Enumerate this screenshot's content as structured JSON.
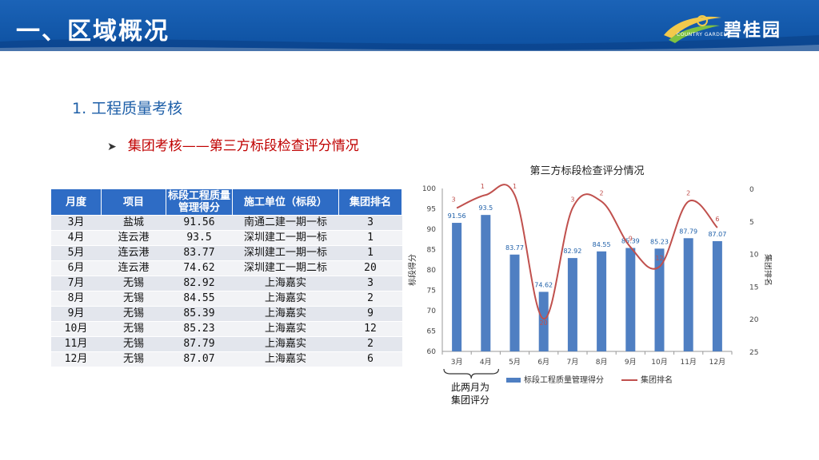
{
  "header": {
    "title": "一、区域概况",
    "logo_text": "碧桂园",
    "logo_small": "COUNTRY GARDEN"
  },
  "section_title": "1. 工程质量考核",
  "subsection_title": "集团考核——第三方标段检查评分情况",
  "colors": {
    "header_blue": "#1b63b7",
    "bar_blue": "#4f7fc2",
    "line_red": "#c0504d",
    "table_header": "#2e6cc5"
  },
  "table": {
    "headers": [
      "月度",
      "项目",
      "标段工程质量管理得分",
      "施工单位（标段）",
      "集团排名"
    ],
    "rows": [
      [
        "3月",
        "盐城",
        "91.56",
        "南通二建一期一标",
        "3"
      ],
      [
        "4月",
        "连云港",
        "93.5",
        "深圳建工一期一标",
        "1"
      ],
      [
        "5月",
        "连云港",
        "83.77",
        "深圳建工一期一标",
        "1"
      ],
      [
        "6月",
        "连云港",
        "74.62",
        "深圳建工一期二标",
        "20"
      ],
      [
        "7月",
        "无锡",
        "82.92",
        "上海嘉实",
        "3"
      ],
      [
        "8月",
        "无锡",
        "84.55",
        "上海嘉实",
        "2"
      ],
      [
        "9月",
        "无锡",
        "85.39",
        "上海嘉实",
        "9"
      ],
      [
        "10月",
        "无锡",
        "85.23",
        "上海嘉实",
        "12"
      ],
      [
        "11月",
        "无锡",
        "87.79",
        "上海嘉实",
        "2"
      ],
      [
        "12月",
        "无锡",
        "87.07",
        "上海嘉实",
        "6"
      ]
    ]
  },
  "chart_data": {
    "type": "bar",
    "title": "第三方标段检查评分情况",
    "categories": [
      "3月",
      "4月",
      "5月",
      "6月",
      "7月",
      "8月",
      "9月",
      "10月",
      "11月",
      "12月"
    ],
    "series": [
      {
        "name": "标段工程质量管理得分",
        "type": "bar",
        "axis": "left",
        "values": [
          91.56,
          93.5,
          83.77,
          74.62,
          82.92,
          84.55,
          85.39,
          85.23,
          87.79,
          87.07
        ],
        "labels": [
          "91.56",
          "93.5",
          "83.77",
          "74.62",
          "82.92",
          "84.55",
          "85.39",
          "85.23",
          "87.79",
          "87.07"
        ]
      },
      {
        "name": "集团排名",
        "type": "line",
        "axis": "right",
        "values": [
          3,
          1,
          1,
          20,
          3,
          2,
          9,
          12,
          2,
          6
        ],
        "labels": [
          "3",
          "1",
          "1",
          "20",
          "3",
          "2",
          "9",
          "12",
          "2",
          "6"
        ]
      }
    ],
    "ylabel": "标段得分",
    "y2label": "集团排名",
    "ylim": [
      60,
      100
    ],
    "y_ticks": [
      "60",
      "65",
      "70",
      "75",
      "80",
      "85",
      "90",
      "95",
      "100"
    ],
    "y2lim": [
      0,
      25
    ],
    "y2_inverted": true,
    "y2_ticks": [
      "0",
      "5",
      "10",
      "15",
      "20",
      "25"
    ],
    "legend_position": "bottom",
    "grid": false
  },
  "annotation": {
    "line1": "此两月为",
    "line2": "集团评分"
  }
}
